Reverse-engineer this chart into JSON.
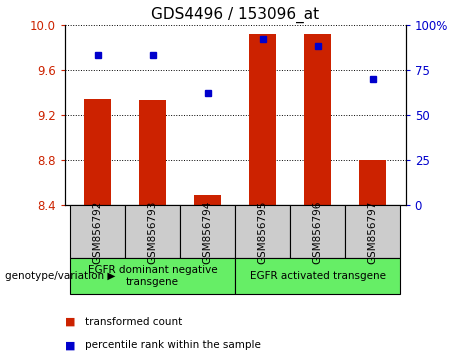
{
  "title": "GDS4496 / 153096_at",
  "samples": [
    "GSM856792",
    "GSM856793",
    "GSM856794",
    "GSM856795",
    "GSM856796",
    "GSM856797"
  ],
  "transformed_count": [
    9.34,
    9.33,
    8.49,
    9.92,
    9.92,
    8.8
  ],
  "percentile_rank": [
    83,
    83,
    62,
    92,
    88,
    70
  ],
  "ylim_left": [
    8.4,
    10.0
  ],
  "ylim_right": [
    0,
    100
  ],
  "yticks_left": [
    8.4,
    8.8,
    9.2,
    9.6,
    10.0
  ],
  "yticks_right": [
    0,
    25,
    50,
    75,
    100
  ],
  "bar_color": "#cc2200",
  "dot_color": "#0000cc",
  "bar_width": 0.5,
  "group1_label": "EGFR dominant negative\ntransgene",
  "group2_label": "EGFR activated transgene",
  "group_color": "#66ee66",
  "sample_box_color": "#cccccc",
  "genotype_label": "genotype/variation",
  "legend_red": "transformed count",
  "legend_blue": "percentile rank within the sample",
  "title_fontsize": 11,
  "axis_fontsize": 8.5,
  "label_fontsize": 7.5
}
